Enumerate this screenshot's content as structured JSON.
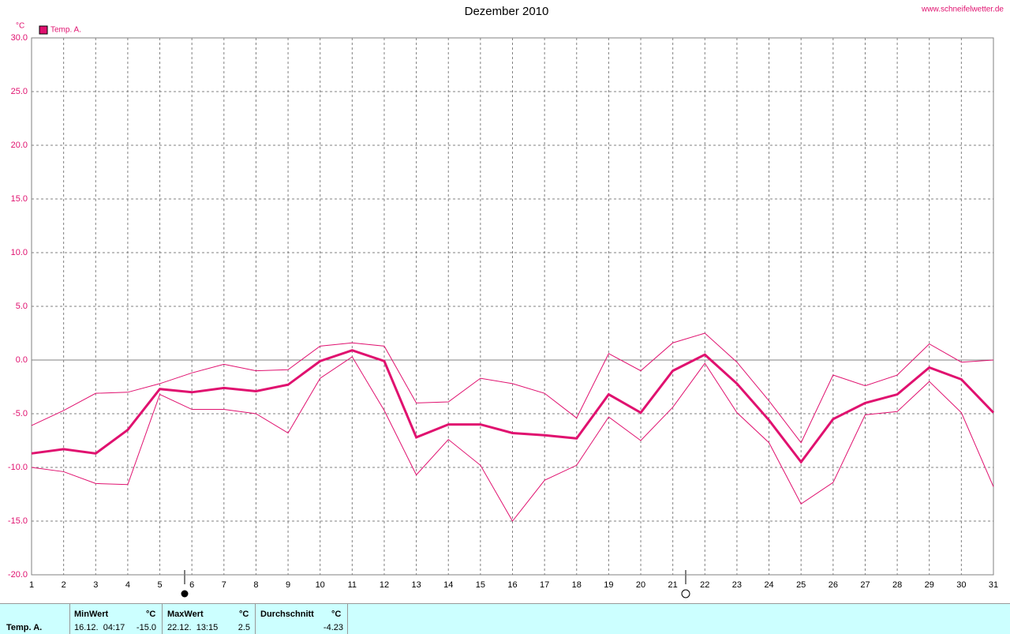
{
  "chart_data": {
    "type": "line",
    "title": "Dezember 2010",
    "source": "www.schneifelwetter.de",
    "y_unit": "°C",
    "x": [
      1,
      2,
      3,
      4,
      5,
      6,
      7,
      8,
      9,
      10,
      11,
      12,
      13,
      14,
      15,
      16,
      17,
      18,
      19,
      20,
      21,
      22,
      23,
      24,
      25,
      26,
      27,
      28,
      29,
      30,
      31
    ],
    "xlim": [
      1,
      31
    ],
    "xticks": [
      1,
      2,
      3,
      4,
      5,
      6,
      7,
      8,
      9,
      10,
      11,
      12,
      13,
      14,
      15,
      16,
      17,
      18,
      19,
      20,
      21,
      22,
      23,
      24,
      25,
      26,
      27,
      28,
      29,
      30,
      31
    ],
    "ylim": [
      -20,
      30
    ],
    "yticks": [
      {
        "value": -20,
        "label": "-20.0"
      },
      {
        "value": -15,
        "label": "-15.0"
      },
      {
        "value": -10,
        "label": "-10.0"
      },
      {
        "value": -5,
        "label": "-5.0"
      },
      {
        "value": 0,
        "label": "0.0"
      },
      {
        "value": 5,
        "label": "5.0"
      },
      {
        "value": 10,
        "label": "10.0"
      },
      {
        "value": 15,
        "label": "15.0"
      },
      {
        "value": 20,
        "label": "20.0"
      },
      {
        "value": 25,
        "label": "25.0"
      },
      {
        "value": 30,
        "label": "30.0"
      }
    ],
    "grid": true,
    "series": [
      {
        "name": "Temp. A.",
        "color": "#e0116f",
        "values": [
          -8.7,
          -8.3,
          -8.7,
          -6.5,
          -2.7,
          -3.0,
          -2.6,
          -2.9,
          -2.3,
          -0.1,
          0.9,
          -0.1,
          -7.2,
          -6.0,
          -6.0,
          -6.8,
          -7.0,
          -7.3,
          -3.2,
          -4.9,
          -1.0,
          0.5,
          -2.2,
          -5.6,
          -9.5,
          -5.5,
          -4.0,
          -3.2,
          -0.7,
          -1.8,
          -4.9
        ]
      },
      {
        "color": "#e0116f",
        "values": [
          -6.1,
          -4.7,
          -3.1,
          -3.0,
          -2.2,
          -1.2,
          -0.4,
          -1.0,
          -0.9,
          1.3,
          1.6,
          1.3,
          -4.0,
          -3.9,
          -1.7,
          -2.2,
          -3.1,
          -5.4,
          0.6,
          -1.0,
          1.6,
          2.5,
          -0.2,
          -3.8,
          -7.7,
          -1.4,
          -2.4,
          -1.4,
          1.5,
          -0.2,
          0.0
        ]
      },
      {
        "color": "#e0116f",
        "values": [
          -10.0,
          -10.4,
          -11.5,
          -11.6,
          -3.2,
          -4.6,
          -4.6,
          -5.0,
          -6.8,
          -1.7,
          0.3,
          -4.7,
          -10.7,
          -7.4,
          -9.8,
          -15.0,
          -11.2,
          -9.8,
          -5.3,
          -7.5,
          -4.4,
          -0.3,
          -4.9,
          -7.7,
          -13.4,
          -11.4,
          -5.1,
          -4.8,
          -2.0,
          -4.9,
          -11.8
        ]
      }
    ]
  },
  "stats": {
    "series": "Temp. A.",
    "min": {
      "header": "MinWert",
      "unit": "°C",
      "time": "16.12.  04:17",
      "value": "-15.0"
    },
    "max": {
      "header": "MaxWert",
      "unit": "°C",
      "time": "22.12.  13:15",
      "value": "2.5"
    },
    "avg": {
      "header": "Durchschnitt",
      "unit": "°C",
      "value": "-4.23"
    }
  }
}
